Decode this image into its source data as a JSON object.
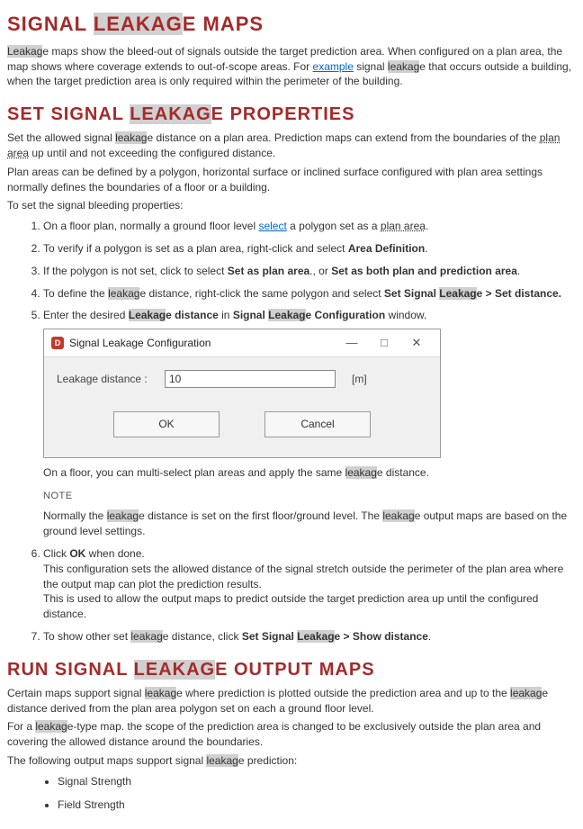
{
  "highlight_token": "leakag",
  "h1": {
    "pre": "SIGNAL ",
    "hl": "LEAKAG",
    "post": "E MAPS"
  },
  "p1a": "Leakag",
  "p1b": "e maps show the bleed-out of signals outside the target prediction area. When configured on a plan area, the map shows where coverage extends to out-of-scope areas. For ",
  "p1_link": "example",
  "p1c": " signal ",
  "p1d": "leakag",
  "p1e": "e that occurs outside a building, when the target prediction area is only required within the perimeter of the building.",
  "h2a": {
    "pre": "SET SIGNAL ",
    "hl": "LEAKAG",
    "post": "E PROPERTIES"
  },
  "p2a": "Set the allowed signal ",
  "p2b": "leakag",
  "p2c": "e distance on a plan area. Prediction maps can extend from the boundaries of the ",
  "p2_plan": "plan area",
  "p2d": " up until and not exceeding the configured distance.",
  "p3": "Plan areas can be defined by a polygon, horizontal surface or inclined surface configured with plan area settings normally defines the boundaries of a floor or a building.",
  "p4": "To set the signal bleeding properties:",
  "li1a": "On a floor plan, normally a ground floor level ",
  "li1_select": "select",
  "li1b": " a polygon set as a ",
  "li1_plan": "plan area",
  "li1c": ".",
  "li2a": "To verify if a polygon is set as a plan area, right-click and select ",
  "li2b": "Area Definition",
  "li2c": ".",
  "li3a": "If the polygon is not set, click to select ",
  "li3b": "Set as plan area",
  "li3c": "., or ",
  "li3d": "Set as both plan and prediction area",
  "li3e": ".",
  "li4a": "To define the ",
  "li4hl": "leakag",
  "li4b": "e distance, right-click the same polygon and select ",
  "li4c": "Set Signal ",
  "li4d": "Leakag",
  "li4e": "e > Set distance.",
  "li5a": "Enter the desired ",
  "li5b": "Leakag",
  "li5c": "e distance",
  "li5d": " in ",
  "li5e": "Signal ",
  "li5f": "Leakag",
  "li5g": "e Configuration",
  "li5h": " window.",
  "dialog": {
    "title": "Signal Leakage Configuration",
    "label": "Leakage distance :",
    "value": "10",
    "unit": "[m]",
    "ok": "OK",
    "cancel": "Cancel"
  },
  "li5_after_a": "On a floor, you can multi-select plan areas and apply the same ",
  "li5_after_b": "leakag",
  "li5_after_c": "e distance.",
  "note_label": "NOTE",
  "note_a": "Normally the ",
  "note_b": "leakag",
  "note_c": "e distance is set on the first floor/ground level. The ",
  "note_d": "leakag",
  "note_e": "e output maps are based on the ground level settings.",
  "li6a": "Click ",
  "li6b": "OK",
  "li6c": " when done.",
  "li6d": "This configuration sets the allowed distance of the signal stretch outside the perimeter of the plan area where the output map can plot the prediction results.",
  "li6e": "This is used to allow the output maps to predict outside the target prediction area up until the configured distance.",
  "li7a": "To show other set ",
  "li7b": "leakag",
  "li7c": "e distance, click ",
  "li7d": "Set Signal ",
  "li7e": "Leakag",
  "li7f": "e > Show distance",
  "li7g": ".",
  "h2b": {
    "pre": "RUN SIGNAL ",
    "hl": "LEAKAG",
    "post": "E OUTPUT MAPS"
  },
  "r1a": "Certain maps support signal ",
  "r1b": "leakag",
  "r1c": "e where prediction is plotted outside the prediction area and up to the ",
  "r1d": "leakag",
  "r1e": "e distance derived from the plan area polygon set on each a ground floor level.",
  "r2a": "For a ",
  "r2b": "leakag",
  "r2c": "e-type map. the scope of the prediction area is changed to be exclusively outside the plan area and covering the allowed distance around the boundaries.",
  "r3a": "The following output maps support signal ",
  "r3b": "leakag",
  "r3c": "e prediction:",
  "out1": "Signal Strength",
  "out2": "Field Strength"
}
